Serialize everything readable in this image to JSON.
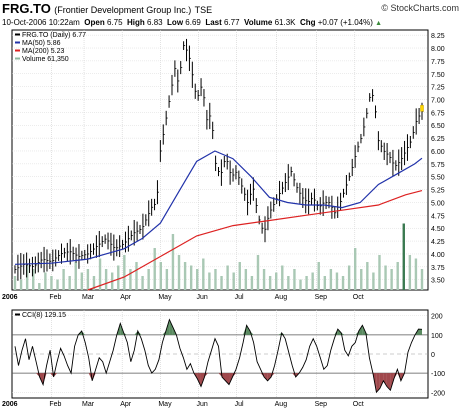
{
  "header": {
    "symbol": "FRG.TO",
    "company": "(Frontier Development Group Inc.)",
    "exchange": "TSE",
    "copyright": "© StockCharts.com",
    "date": "10-Oct-2006 10:22am",
    "open_label": "Open",
    "open": "6.75",
    "high_label": "High",
    "high": "6.83",
    "low_label": "Low",
    "low": "6.69",
    "last_label": "Last",
    "last": "6.77",
    "volume_label": "Volume",
    "volume": "61.3K",
    "chg_label": "Chg",
    "chg": "+0.07 (+1.04%)",
    "chg_arrow": "▲"
  },
  "chart_data": [
    {
      "type": "line",
      "panel": "price",
      "legend": [
        {
          "label": "FRG.TO (Daily) 6.77",
          "color": "#000000"
        },
        {
          "label": "MA(50) 5.86",
          "color": "#2233aa"
        },
        {
          "label": "MA(200) 5.23",
          "color": "#dd2222"
        },
        {
          "label": "Volume 61,350",
          "color": "#8fb8a0"
        }
      ],
      "ylim": [
        3.3,
        8.35
      ],
      "yticks": [
        "3.50",
        "3.75",
        "4.00",
        "4.25",
        "4.50",
        "4.75",
        "5.00",
        "5.25",
        "5.50",
        "5.75",
        "6.00",
        "6.25",
        "6.50",
        "6.75",
        "7.00",
        "7.25",
        "7.50",
        "7.75",
        "8.00",
        "8.25"
      ],
      "xticks": [
        "2006",
        "Feb",
        "Mar",
        "Apr",
        "May",
        "Jun",
        "Jul",
        "Aug",
        "Sep",
        "Oct"
      ],
      "close_points": [
        [
          0,
          3.7
        ],
        [
          5,
          3.8
        ],
        [
          10,
          3.75
        ],
        [
          15,
          3.9
        ],
        [
          20,
          3.85
        ],
        [
          25,
          4.0
        ],
        [
          30,
          4.05
        ],
        [
          35,
          3.95
        ],
        [
          40,
          4.0
        ],
        [
          45,
          4.15
        ],
        [
          50,
          4.3
        ],
        [
          55,
          4.1
        ],
        [
          60,
          4.2
        ],
        [
          65,
          4.4
        ],
        [
          70,
          4.5
        ],
        [
          75,
          4.9
        ],
        [
          78,
          5.0
        ],
        [
          80,
          6.0
        ],
        [
          85,
          7.0
        ],
        [
          88,
          7.6
        ],
        [
          90,
          7.3
        ],
        [
          93,
          8.1
        ],
        [
          96,
          7.8
        ],
        [
          100,
          7.0
        ],
        [
          103,
          7.3
        ],
        [
          106,
          6.5
        ],
        [
          108,
          6.8
        ],
        [
          110,
          5.8
        ],
        [
          113,
          5.5
        ],
        [
          116,
          5.9
        ],
        [
          119,
          5.5
        ],
        [
          122,
          5.6
        ],
        [
          125,
          5.3
        ],
        [
          128,
          5.0
        ],
        [
          131,
          5.3
        ],
        [
          134,
          4.7
        ],
        [
          137,
          4.4
        ],
        [
          140,
          4.8
        ],
        [
          143,
          5.0
        ],
        [
          146,
          5.2
        ],
        [
          149,
          5.4
        ],
        [
          152,
          5.6
        ],
        [
          155,
          5.3
        ],
        [
          158,
          5.1
        ],
        [
          161,
          5.0
        ],
        [
          164,
          5.1
        ],
        [
          167,
          4.9
        ],
        [
          170,
          5.0
        ],
        [
          173,
          5.0
        ],
        [
          176,
          4.8
        ],
        [
          179,
          5.0
        ],
        [
          182,
          5.3
        ],
        [
          185,
          5.6
        ],
        [
          188,
          6.0
        ],
        [
          191,
          6.3
        ],
        [
          194,
          6.8
        ],
        [
          196,
          7.2
        ],
        [
          198,
          6.9
        ],
        [
          200,
          6.2
        ],
        [
          203,
          6.0
        ],
        [
          206,
          5.9
        ],
        [
          209,
          5.7
        ],
        [
          212,
          5.8
        ],
        [
          215,
          6.0
        ],
        [
          218,
          6.2
        ],
        [
          221,
          6.6
        ],
        [
          224,
          6.77
        ]
      ],
      "ma50_points": [
        [
          0,
          3.8
        ],
        [
          20,
          3.82
        ],
        [
          40,
          3.9
        ],
        [
          60,
          4.1
        ],
        [
          70,
          4.3
        ],
        [
          80,
          4.6
        ],
        [
          90,
          5.2
        ],
        [
          100,
          5.8
        ],
        [
          110,
          6.0
        ],
        [
          120,
          5.85
        ],
        [
          130,
          5.5
        ],
        [
          140,
          5.1
        ],
        [
          150,
          5.0
        ],
        [
          160,
          4.95
        ],
        [
          170,
          4.95
        ],
        [
          180,
          4.9
        ],
        [
          190,
          5.0
        ],
        [
          200,
          5.35
        ],
        [
          210,
          5.55
        ],
        [
          220,
          5.75
        ],
        [
          224,
          5.86
        ]
      ],
      "ma200_points": [
        [
          40,
          3.3
        ],
        [
          60,
          3.55
        ],
        [
          80,
          3.95
        ],
        [
          100,
          4.35
        ],
        [
          120,
          4.55
        ],
        [
          140,
          4.65
        ],
        [
          160,
          4.75
        ],
        [
          180,
          4.85
        ],
        [
          200,
          4.95
        ],
        [
          215,
          5.15
        ],
        [
          224,
          5.23
        ]
      ],
      "volume_relative": [
        0.2,
        0.15,
        0.35,
        0.3,
        0.1,
        0.25,
        0.2,
        0.15,
        0.3,
        0.2,
        0.4,
        0.25,
        0.3,
        0.2,
        0.45,
        0.3,
        0.25,
        0.35,
        0.5,
        0.3,
        0.4,
        0.2,
        0.3,
        0.6,
        0.4,
        0.3,
        0.8,
        0.5,
        0.4,
        0.35,
        0.3,
        0.45,
        0.25,
        0.3,
        0.2,
        0.35,
        0.25,
        0.4,
        0.3,
        0.2,
        0.5,
        0.3,
        0.2,
        0.25,
        0.35,
        0.2,
        0.3,
        0.15,
        0.2,
        0.25,
        0.4,
        0.2,
        0.3,
        0.25,
        0.2,
        0.35,
        0.6,
        0.3,
        0.4,
        0.25,
        0.5,
        0.35,
        0.3,
        0.4,
        0.95,
        0.5,
        0.45,
        0.3
      ],
      "volume_highlight_index": 64
    },
    {
      "type": "line",
      "panel": "indicator",
      "legend": [
        {
          "label": "CCI(8) 129.15",
          "color": "#000000"
        }
      ],
      "ylim": [
        -230,
        230
      ],
      "yticks": [
        "200",
        "100",
        "0",
        "-100",
        "-200"
      ],
      "xticks": [
        "2006",
        "Feb",
        "Mar",
        "Apr",
        "May",
        "Jun",
        "Jul",
        "Aug",
        "Sep",
        "Oct"
      ],
      "positive_fill": "#5a8a60",
      "negative_fill": "#a0484c",
      "values": [
        40,
        -60,
        20,
        80,
        -30,
        40,
        -40,
        -120,
        -160,
        -60,
        20,
        -120,
        -40,
        30,
        -10,
        -60,
        -100,
        40,
        100,
        120,
        60,
        -20,
        -140,
        -80,
        -20,
        -40,
        -100,
        -40,
        20,
        100,
        160,
        110,
        60,
        -40,
        20,
        120,
        80,
        20,
        -60,
        -100,
        -80,
        -30,
        60,
        120,
        180,
        140,
        100,
        30,
        -20,
        -80,
        -50,
        -100,
        -130,
        -170,
        -120,
        -40,
        20,
        80,
        40,
        -120,
        -140,
        -160,
        -120,
        -80,
        -20,
        60,
        150,
        120,
        60,
        -40,
        -80,
        -120,
        -140,
        -120,
        -60,
        20,
        110,
        80,
        10,
        -60,
        -120,
        -100,
        -70,
        -30,
        40,
        80,
        40,
        -20,
        -80,
        -60,
        20,
        80,
        130,
        110,
        20,
        -10,
        40,
        60,
        120,
        150,
        110,
        -20,
        -100,
        -200,
        -180,
        -140,
        -170,
        -190,
        -130,
        -80,
        -140,
        -100,
        10,
        60,
        100,
        130,
        129
      ]
    }
  ]
}
